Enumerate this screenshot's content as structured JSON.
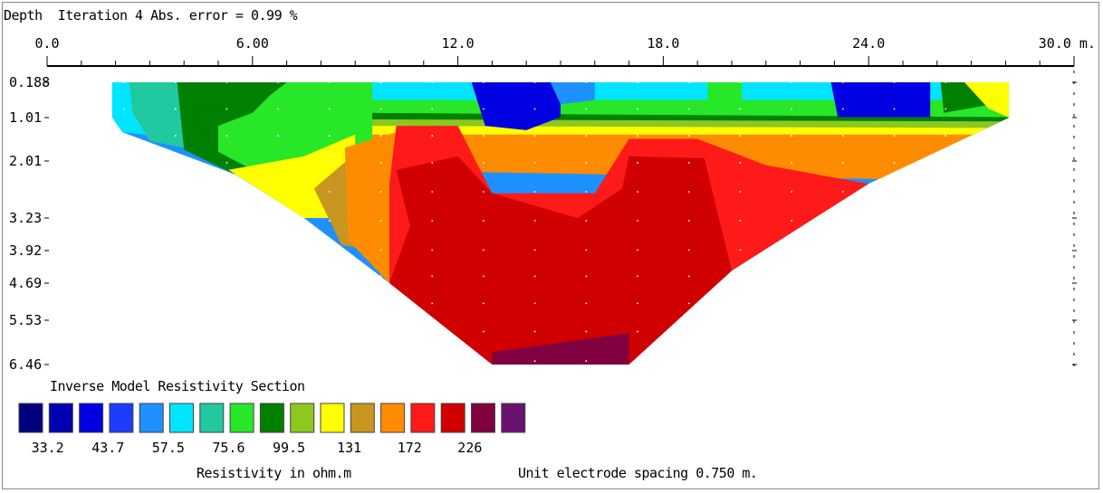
{
  "header": {
    "depth_label": "Depth",
    "iteration_text": "Iteration 4 Abs. error = 0.99 %"
  },
  "chart_data": {
    "type": "heatmap",
    "title": "Inverse Model Resistivity Section",
    "x_unit_label": "30.0 m.",
    "x_ticks": [
      {
        "value": 0,
        "label": "0.0"
      },
      {
        "value": 6,
        "label": "6.00"
      },
      {
        "value": 12,
        "label": "12.0"
      },
      {
        "value": 18,
        "label": "18.0"
      },
      {
        "value": 24,
        "label": "24.0"
      }
    ],
    "xlim": [
      0,
      30
    ],
    "y_ticks": [
      {
        "value": 0.188,
        "label": "0.188"
      },
      {
        "value": 1.01,
        "label": "1.01"
      },
      {
        "value": 2.01,
        "label": "2.01"
      },
      {
        "value": 3.23,
        "label": "3.23"
      },
      {
        "value": 3.92,
        "label": "3.92"
      },
      {
        "value": 4.69,
        "label": "4.69"
      },
      {
        "value": 5.53,
        "label": "5.53"
      },
      {
        "value": 6.46,
        "label": "6.46"
      }
    ],
    "section_outline": [
      [
        1.9,
        0.188
      ],
      [
        28.1,
        0.188
      ],
      [
        28.1,
        1.01
      ],
      [
        24,
        2.5
      ],
      [
        20,
        4.4
      ],
      [
        17,
        6.46
      ],
      [
        13,
        6.46
      ],
      [
        10,
        4.69
      ],
      [
        7.5,
        3.23
      ],
      [
        5.5,
        2.3
      ],
      [
        2.2,
        1.35
      ],
      [
        1.9,
        1.01
      ]
    ],
    "zones": [
      {
        "level": 5,
        "points": [
          [
            1.9,
            0.188
          ],
          [
            4,
            0.188
          ],
          [
            4,
            1.5
          ],
          [
            2.2,
            1.35
          ],
          [
            1.9,
            1.01
          ]
        ]
      },
      {
        "level": 6,
        "points": [
          [
            2.4,
            0.188
          ],
          [
            4.4,
            0.188
          ],
          [
            4.6,
            1.8
          ],
          [
            3.0,
            1.55
          ],
          [
            2.5,
            0.9
          ]
        ]
      },
      {
        "level": 8,
        "points": [
          [
            3.8,
            0.188
          ],
          [
            9,
            0.188
          ],
          [
            9,
            1.9
          ],
          [
            7,
            2.5
          ],
          [
            5.5,
            2.3
          ],
          [
            4,
            1.75
          ]
        ]
      },
      {
        "level": 7,
        "points": [
          [
            7,
            0.188
          ],
          [
            9.5,
            0.188
          ],
          [
            9.5,
            1.9
          ],
          [
            7.5,
            2.4
          ],
          [
            6,
            2.2
          ],
          [
            5,
            1.8
          ],
          [
            5,
            1.2
          ],
          [
            6,
            0.9
          ],
          [
            6.5,
            0.5
          ]
        ]
      },
      {
        "level": 10,
        "points": [
          [
            5.3,
            2.2
          ],
          [
            7.5,
            1.9
          ],
          [
            9,
            1.4
          ],
          [
            9,
            3.23
          ],
          [
            7.5,
            3.23
          ]
        ]
      },
      {
        "level": 11,
        "points": [
          [
            7.8,
            2.6
          ],
          [
            9.2,
            1.7
          ],
          [
            10,
            2.1
          ],
          [
            9.5,
            3.92
          ],
          [
            8.6,
            3.8
          ]
        ]
      },
      {
        "level": 12,
        "points": [
          [
            8.7,
            1.7
          ],
          [
            10.2,
            1.35
          ],
          [
            10.6,
            3.92
          ],
          [
            10,
            4.69
          ],
          [
            8.8,
            3.7
          ]
        ]
      },
      {
        "level": 2,
        "points": [
          [
            12.4,
            0.188
          ],
          [
            15,
            0.188
          ],
          [
            15,
            1.0
          ],
          [
            14,
            1.3
          ],
          [
            12.8,
            1.2
          ]
        ]
      },
      {
        "level": 4,
        "points": [
          [
            14.7,
            0.188
          ],
          [
            16,
            0.188
          ],
          [
            16,
            0.6
          ],
          [
            15,
            0.7
          ]
        ]
      },
      {
        "level": 7,
        "points": [
          [
            19.3,
            0.188
          ],
          [
            20.3,
            0.188
          ],
          [
            20.3,
            0.7
          ],
          [
            19.3,
            0.9
          ]
        ]
      },
      {
        "level": 2,
        "points": [
          [
            22.9,
            0.188
          ],
          [
            25.8,
            0.188
          ],
          [
            25.8,
            1.0
          ],
          [
            23.1,
            1.0
          ]
        ]
      },
      {
        "level": 8,
        "points": [
          [
            26.1,
            0.188
          ],
          [
            28.1,
            0.188
          ],
          [
            27.6,
            0.7
          ],
          [
            26.2,
            0.9
          ]
        ]
      },
      {
        "level": 10,
        "points": [
          [
            26.8,
            0.188
          ],
          [
            28.1,
            0.188
          ],
          [
            28.1,
            1.01
          ],
          [
            27.5,
            0.8
          ]
        ]
      },
      {
        "level": 13,
        "points": [
          [
            10.2,
            1.2
          ],
          [
            12,
            1.2
          ],
          [
            13,
            2.7
          ],
          [
            16,
            2.7
          ],
          [
            17,
            1.5
          ],
          [
            19,
            1.5
          ],
          [
            21,
            2.1
          ],
          [
            24,
            2.5
          ],
          [
            20,
            4.4
          ],
          [
            17,
            6.46
          ],
          [
            13,
            6.46
          ],
          [
            10,
            4.69
          ],
          [
            10,
            2.5
          ]
        ]
      },
      {
        "level": 14,
        "points": [
          [
            10.2,
            2.2
          ],
          [
            12,
            1.9
          ],
          [
            13,
            2.7
          ],
          [
            15.5,
            3.23
          ],
          [
            16.8,
            2.6
          ],
          [
            17,
            1.9
          ],
          [
            19.2,
            1.95
          ],
          [
            20,
            4.4
          ],
          [
            17,
            6.46
          ],
          [
            13,
            6.46
          ],
          [
            10,
            4.69
          ],
          [
            10.6,
            3.4
          ]
        ]
      },
      {
        "level": 15,
        "points": [
          [
            13,
            6.2
          ],
          [
            17,
            5.8
          ],
          [
            17,
            6.46
          ],
          [
            13,
            6.46
          ]
        ]
      }
    ],
    "colorscale": {
      "colors": [
        "#00007f",
        "#0000b2",
        "#0000e0",
        "#1e3cff",
        "#1e90ff",
        "#00e5ff",
        "#20c9a0",
        "#28e628",
        "#008000",
        "#8cc81e",
        "#ffff00",
        "#c8961e",
        "#ff8c00",
        "#ff1a1a",
        "#d00000",
        "#800040",
        "#6a1070"
      ],
      "legend_labels": [
        "33.2",
        "43.7",
        "57.5",
        "75.6",
        "99.5",
        "131",
        "172",
        "226"
      ],
      "unit_label": "Resistivity in ohm.m"
    },
    "spacing_text": "Unit electrode spacing 0.750 m."
  }
}
